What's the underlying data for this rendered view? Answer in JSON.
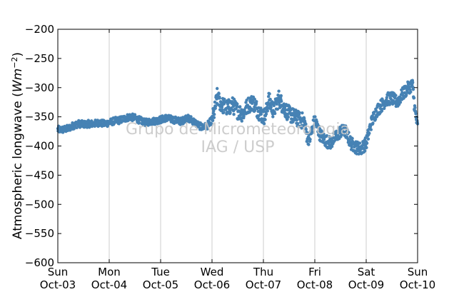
{
  "chart_data": {
    "type": "scatter",
    "title": "",
    "xlabel": "",
    "ylabel": "Atmospheric longwave",
    "ylabel_units_base": "Wm",
    "ylabel_units_exp": "−2",
    "ylim": [
      -600,
      -200
    ],
    "yticks": [
      -200,
      -250,
      -300,
      -350,
      -400,
      -450,
      -500,
      -550,
      -600
    ],
    "ytick_labels": [
      "−200",
      "−250",
      "−300",
      "−350",
      "−400",
      "−450",
      "−500",
      "−550",
      "−600"
    ],
    "xlim": [
      0,
      7
    ],
    "xtick_labels": [
      {
        "day": "Sun",
        "date": "Oct-03"
      },
      {
        "day": "Mon",
        "date": "Oct-04"
      },
      {
        "day": "Tue",
        "date": "Oct-05"
      },
      {
        "day": "Wed",
        "date": "Oct-06"
      },
      {
        "day": "Thu",
        "date": "Oct-07"
      },
      {
        "day": "Fri",
        "date": "Oct-08"
      },
      {
        "day": "Sat",
        "date": "Oct-09"
      },
      {
        "day": "Sun",
        "date": "Oct-10"
      }
    ],
    "grid": "vertical",
    "marker_color": "#4682b4",
    "watermark": [
      "Grupo de Micrometeorologia",
      "IAG / USP"
    ],
    "series": [
      {
        "x": [
          0.0,
          0.1,
          0.2,
          0.3,
          0.4,
          0.5,
          0.6,
          0.7,
          0.8,
          0.9,
          1.0,
          1.1,
          1.2,
          1.3,
          1.4,
          1.5,
          1.6,
          1.7,
          1.8,
          1.9,
          2.0,
          2.1,
          2.2,
          2.3,
          2.4,
          2.5,
          2.6,
          2.7,
          2.8,
          2.9,
          3.0,
          3.05,
          3.1,
          3.15,
          3.2,
          3.3,
          3.4,
          3.5,
          3.6,
          3.7,
          3.8,
          3.9,
          4.0,
          4.05,
          4.1,
          4.2,
          4.3,
          4.4,
          4.5,
          4.6,
          4.7,
          4.8,
          4.85,
          4.9,
          5.0,
          5.1,
          5.2,
          5.3,
          5.4,
          5.5,
          5.6,
          5.7,
          5.8,
          5.9,
          6.0,
          6.1,
          6.2,
          6.3,
          6.4,
          6.5,
          6.6,
          6.7,
          6.8,
          6.85,
          6.9,
          6.95,
          7.0
        ],
        "y": [
          -372,
          -372,
          -370,
          -365,
          -362,
          -363,
          -362,
          -362,
          -360,
          -362,
          -360,
          -357,
          -356,
          -353,
          -350,
          -352,
          -356,
          -360,
          -358,
          -357,
          -355,
          -352,
          -354,
          -356,
          -358,
          -352,
          -355,
          -362,
          -368,
          -366,
          -355,
          -340,
          -315,
          -325,
          -330,
          -335,
          -330,
          -340,
          -345,
          -330,
          -325,
          -340,
          -350,
          -345,
          -320,
          -340,
          -318,
          -335,
          -345,
          -350,
          -355,
          -358,
          -385,
          -388,
          -355,
          -380,
          -390,
          -395,
          -385,
          -375,
          -375,
          -395,
          -402,
          -405,
          -395,
          -360,
          -340,
          -330,
          -320,
          -318,
          -325,
          -312,
          -302,
          -298,
          -295,
          -340,
          -368
        ]
      }
    ]
  }
}
